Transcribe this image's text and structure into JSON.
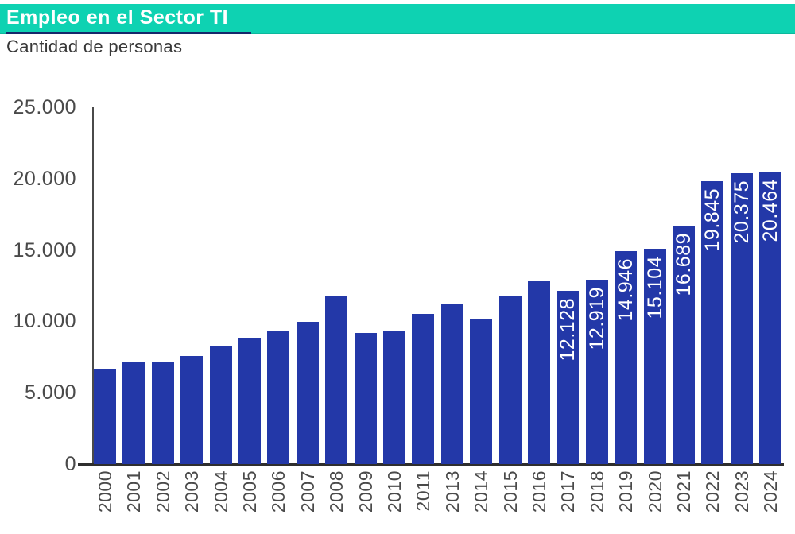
{
  "header": {
    "title": "Empleo en el Sector TI",
    "subtitle": "Cantidad de personas"
  },
  "colors": {
    "band_teal": "#0ed2b2",
    "band_edge_teal": "#0cb89c",
    "title_text": "#ffffff",
    "title_underline_navy": "#16286b",
    "bar_blue": "#2338a8",
    "bar_label_text": "#ffffff",
    "axis_gray": "#4a4a4a",
    "baseline_dark": "#2e2e2e",
    "subtitle_text": "#383838"
  },
  "chart_data": {
    "type": "bar",
    "title": "Empleo en el Sector TI",
    "subtitle": "Cantidad de personas",
    "xlabel": "",
    "ylabel": "Cantidad de personas",
    "grid": false,
    "legend": null,
    "ylim": [
      0,
      25000
    ],
    "ytick_values": [
      0,
      5000,
      10000,
      15000,
      20000,
      25000
    ],
    "ytick_labels": [
      "0",
      "5.000",
      "10.000",
      "15.000",
      "20.000",
      "25.000"
    ],
    "categories": [
      "2000",
      "2001",
      "2002",
      "2003",
      "2004",
      "2005",
      "2006",
      "2007",
      "2008",
      "2009",
      "2010",
      "2011",
      "2013",
      "2014",
      "2015",
      "2016",
      "2017",
      "2018",
      "2019",
      "2020",
      "2021",
      "2022",
      "2023",
      "2024"
    ],
    "values": [
      6700,
      7100,
      7200,
      7600,
      8300,
      8850,
      9350,
      9950,
      11750,
      9200,
      9300,
      10500,
      11250,
      10150,
      11750,
      12850,
      12128,
      12919,
      14946,
      15104,
      16689,
      19845,
      20375,
      20464
    ],
    "bar_labels": [
      "",
      "",
      "",
      "",
      "",
      "",
      "",
      "",
      "",
      "",
      "",
      "",
      "",
      "",
      "",
      "",
      "12.128",
      "12.919",
      "14.946",
      "15.104",
      "16.689",
      "19.845",
      "20.375",
      "20.464"
    ]
  }
}
